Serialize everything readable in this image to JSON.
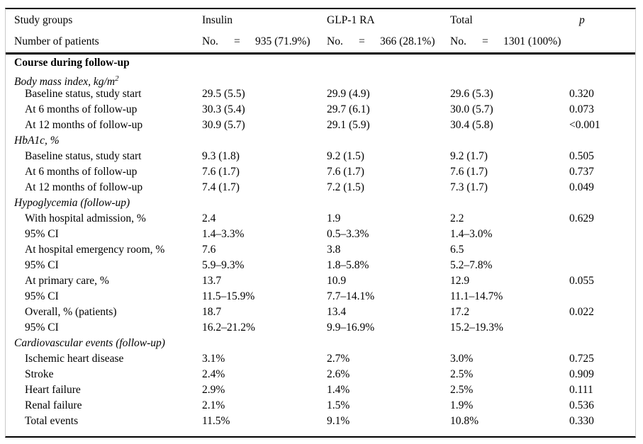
{
  "table": {
    "header": {
      "study_groups": "Study groups",
      "insulin": "Insulin",
      "glp1ra": "GLP-1 RA",
      "total": "Total",
      "p": "p",
      "number_of_patients": "Number of patients",
      "no_label": "No.",
      "eq": "=",
      "insulin_n": "935 (71.9%)",
      "glp1ra_n": "366 (28.1%)",
      "total_n": "1301 (100%)"
    },
    "rows": [
      {
        "type": "bold",
        "label": "Course during follow-up",
        "c1": "",
        "c2": "",
        "c3": "",
        "p": ""
      },
      {
        "type": "section",
        "label": "Body mass index, kg/m",
        "sup": "2",
        "c1": "",
        "c2": "",
        "c3": "",
        "p": ""
      },
      {
        "type": "data",
        "label": "Baseline status, study start",
        "c1": "29.5 (5.5)",
        "c2": "29.9 (4.9)",
        "c3": "29.6 (5.3)",
        "p": "0.320"
      },
      {
        "type": "data",
        "label": "At 6 months of follow-up",
        "c1": "30.3 (5.4)",
        "c2": "29.7 (6.1)",
        "c3": "30.0 (5.7)",
        "p": "0.073"
      },
      {
        "type": "data",
        "label": "At 12 months of follow-up",
        "c1": "30.9 (5.7)",
        "c2": "29.1 (5.9)",
        "c3": "30.4 (5.8)",
        "p": "<0.001"
      },
      {
        "type": "section",
        "label": "HbA1c, %",
        "c1": "",
        "c2": "",
        "c3": "",
        "p": ""
      },
      {
        "type": "data",
        "label": "Baseline status, study start",
        "c1": "9.3 (1.8)",
        "c2": "9.2 (1.5)",
        "c3": "9.2 (1.7)",
        "p": "0.505"
      },
      {
        "type": "data",
        "label": "At 6 months of follow-up",
        "c1": "7.6 (1.7)",
        "c2": "7.6 (1.7)",
        "c3": "7.6 (1.7)",
        "p": "0.737"
      },
      {
        "type": "data",
        "label": "At 12 months of follow-up",
        "c1": "7.4 (1.7)",
        "c2": "7.2 (1.5)",
        "c3": "7.3 (1.7)",
        "p": "0.049"
      },
      {
        "type": "section",
        "label": "Hypoglycemia (follow-up)",
        "c1": "",
        "c2": "",
        "c3": "",
        "p": ""
      },
      {
        "type": "data",
        "label": "With hospital admission, %",
        "c1": "2.4",
        "c2": "1.9",
        "c3": "2.2",
        "p": "0.629"
      },
      {
        "type": "data",
        "label": "95% CI",
        "c1": "1.4–3.3%",
        "c2": "0.5–3.3%",
        "c3": "1.4–3.0%",
        "p": ""
      },
      {
        "type": "data",
        "label": "At hospital emergency room, %",
        "c1": "7.6",
        "c2": "3.8",
        "c3": "6.5",
        "p": ""
      },
      {
        "type": "data",
        "label": "95% CI",
        "c1": "5.9–9.3%",
        "c2": "1.8–5.8%",
        "c3": "5.2–7.8%",
        "p": ""
      },
      {
        "type": "data",
        "label": "At primary care, %",
        "c1": "13.7",
        "c2": "10.9",
        "c3": "12.9",
        "p": "0.055"
      },
      {
        "type": "data",
        "label": "95% CI",
        "c1": "11.5–15.9%",
        "c2": "7.7–14.1%",
        "c3": "11.1–14.7%",
        "p": ""
      },
      {
        "type": "data",
        "label": "Overall, % (patients)",
        "c1": "18.7",
        "c2": "13.4",
        "c3": "17.2",
        "p": "0.022"
      },
      {
        "type": "data",
        "label": "95% CI",
        "c1": "16.2–21.2%",
        "c2": "9.9–16.9%",
        "c3": "15.2–19.3%",
        "p": ""
      },
      {
        "type": "section",
        "label": "Cardiovascular events (follow-up)",
        "c1": "",
        "c2": "",
        "c3": "",
        "p": ""
      },
      {
        "type": "data",
        "label": "Ischemic heart disease",
        "c1": "3.1%",
        "c2": "2.7%",
        "c3": "3.0%",
        "p": "0.725"
      },
      {
        "type": "data",
        "label": "Stroke",
        "c1": "2.4%",
        "c2": "2.6%",
        "c3": "2.5%",
        "p": "0.909"
      },
      {
        "type": "data",
        "label": "Heart failure",
        "c1": "2.9%",
        "c2": "1.4%",
        "c3": "2.5%",
        "p": "0.111"
      },
      {
        "type": "data",
        "label": "Renal failure",
        "c1": "2.1%",
        "c2": "1.5%",
        "c3": "1.9%",
        "p": "0.536"
      },
      {
        "type": "data",
        "label": "Total events",
        "c1": "11.5%",
        "c2": "9.1%",
        "c3": "10.8%",
        "p": "0.330"
      }
    ]
  }
}
